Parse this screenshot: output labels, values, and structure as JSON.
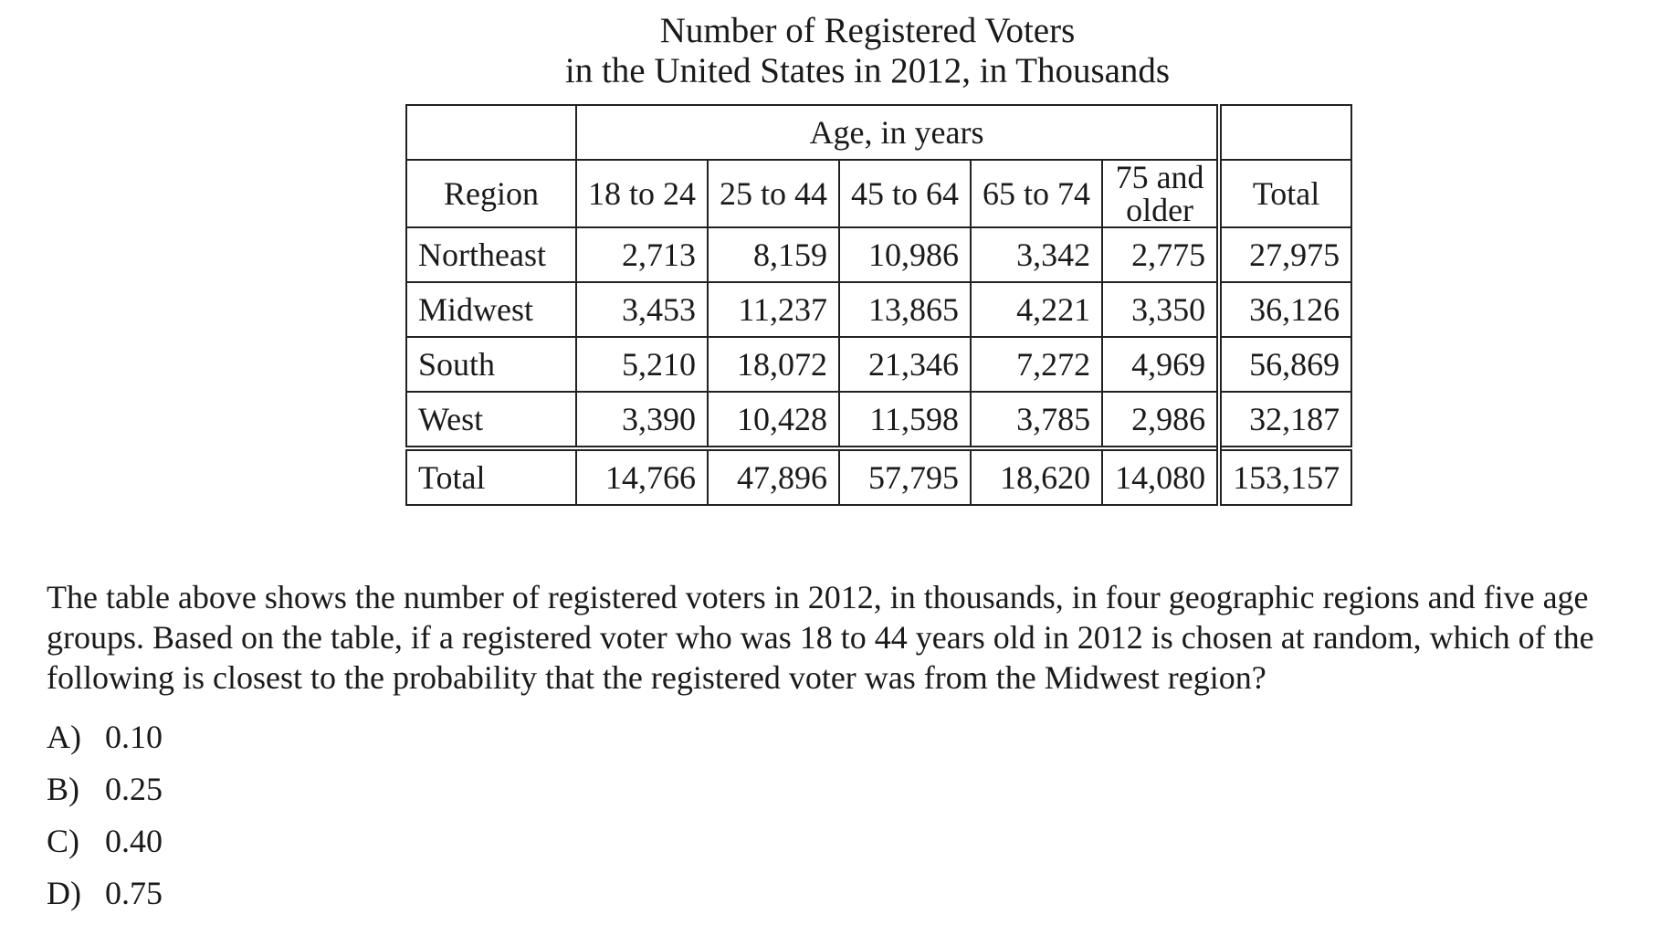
{
  "title": {
    "line1": "Number of Registered Voters",
    "line2": "in the United States in 2012, in Thousands"
  },
  "table": {
    "group_header": "Age, in years",
    "region_header": "Region",
    "age_headers": [
      "18 to 24",
      "25 to 44",
      "45 to 64",
      "65 to 74",
      "75 and older"
    ],
    "total_header": "Total",
    "rows": [
      {
        "region": "Northeast",
        "values": [
          "2,713",
          "8,159",
          "10,986",
          "3,342",
          "2,775"
        ],
        "total": "27,975"
      },
      {
        "region": "Midwest",
        "values": [
          "3,453",
          "11,237",
          "13,865",
          "4,221",
          "3,350"
        ],
        "total": "36,126"
      },
      {
        "region": "South",
        "values": [
          "5,210",
          "18,072",
          "21,346",
          "7,272",
          "4,969"
        ],
        "total": "56,869"
      },
      {
        "region": "West",
        "values": [
          "3,390",
          "10,428",
          "11,598",
          "3,785",
          "2,986"
        ],
        "total": "32,187"
      }
    ],
    "total_row": {
      "region": "Total",
      "values": [
        "14,766",
        "47,896",
        "57,795",
        "18,620",
        "14,080"
      ],
      "total": "153,157"
    }
  },
  "question": "The table above shows the number of registered voters in 2012, in thousands, in four geographic regions and five age groups. Based on the table, if a registered voter who was 18 to 44 years old in 2012 is chosen at random, which of the following is closest to the probability that the registered voter was from the Midwest region?",
  "choices": [
    {
      "letter": "A)",
      "value": "0.10"
    },
    {
      "letter": "B)",
      "value": "0.25"
    },
    {
      "letter": "C)",
      "value": "0.40"
    },
    {
      "letter": "D)",
      "value": "0.75"
    }
  ]
}
